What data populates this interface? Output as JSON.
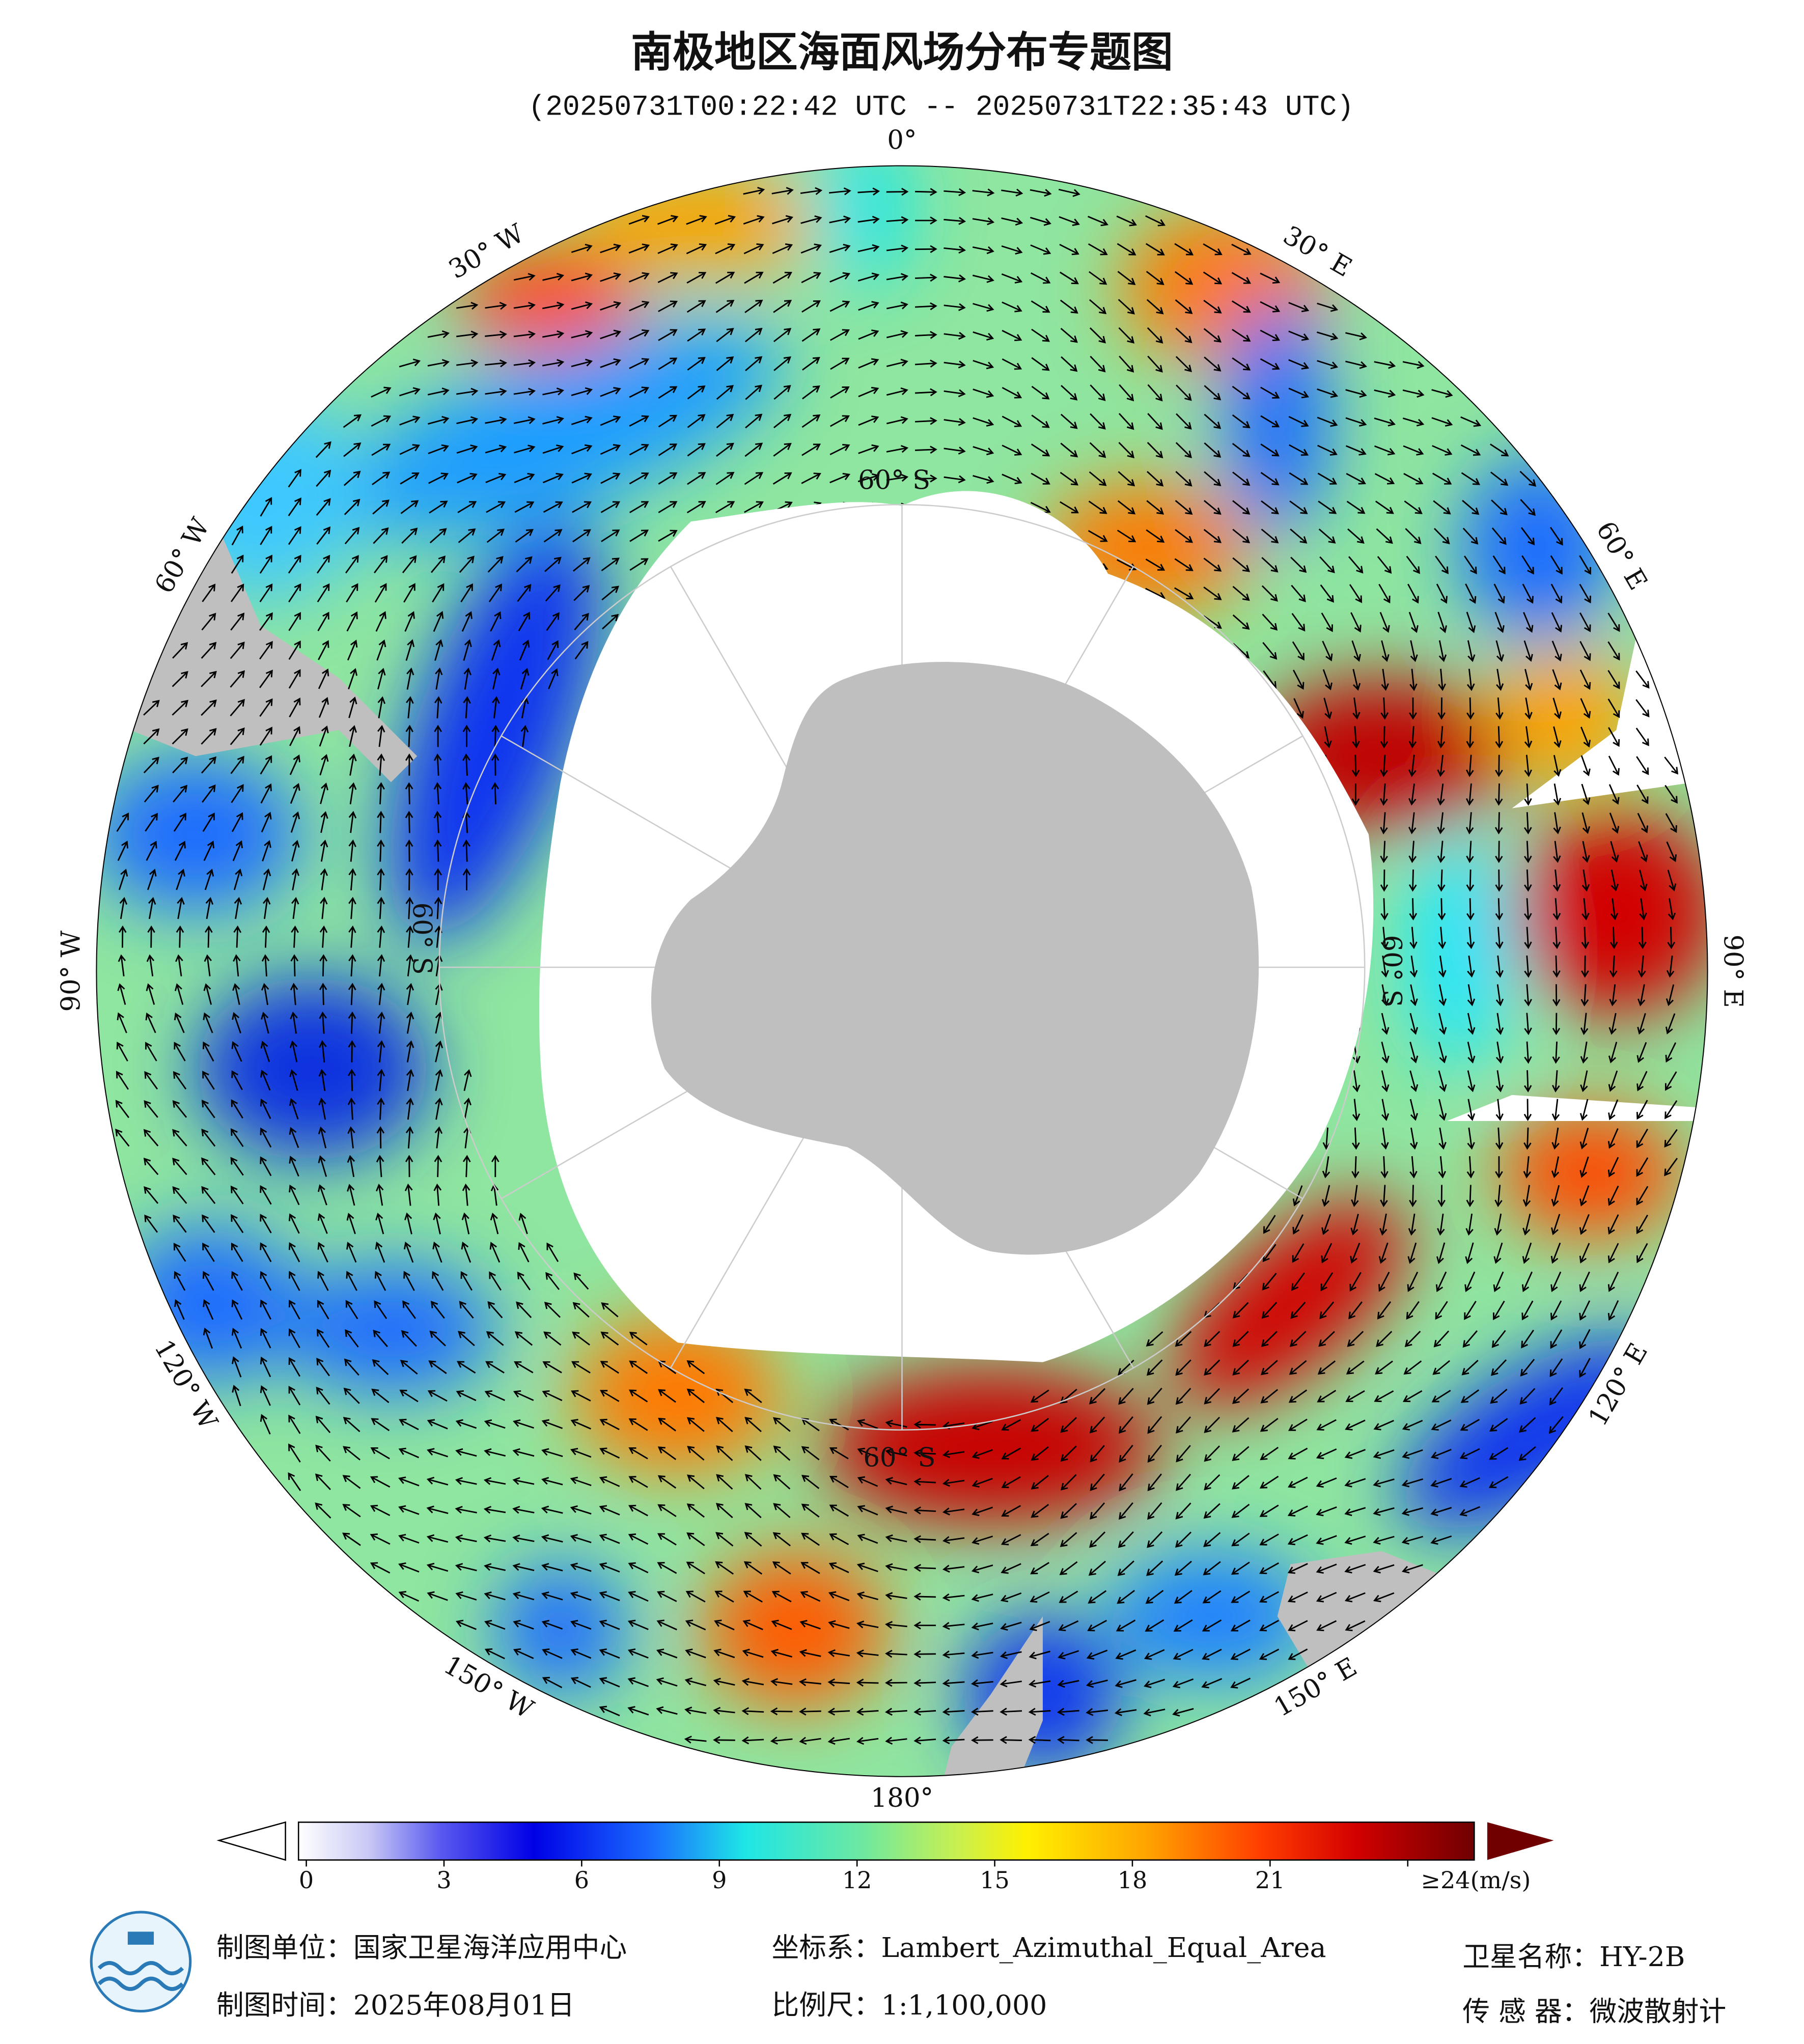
{
  "header": {
    "title": "南极地区海面风场分布专题图",
    "subtitle": "(20250731T00:22:42 UTC -- 20250731T22:35:43 UTC)"
  },
  "map": {
    "longitude_labels": [
      "0°",
      "30° E",
      "60° E",
      "90° E",
      "120° E",
      "150° E",
      "180°",
      "150° W",
      "120° W",
      "90° W",
      "60° W",
      "30° W"
    ],
    "latitude_label": "60° S"
  },
  "colorbar": {
    "range": [
      0,
      24
    ],
    "ticks": [
      0,
      3,
      6,
      9,
      12,
      15,
      18,
      21,
      {
        "value": 24,
        "label": "≥24(m/s)"
      }
    ]
  },
  "footer": {
    "producer": "制图单位：国家卫星海洋应用中心",
    "crs": "坐标系：Lambert_Azimuthal_Equal_Area",
    "satellite": "卫星名称：HY-2B",
    "date": "制图时间：2025年08月01日",
    "scale": "比例尺：1:1,100,000",
    "sensor": "传 感 器：微波散射计"
  }
}
